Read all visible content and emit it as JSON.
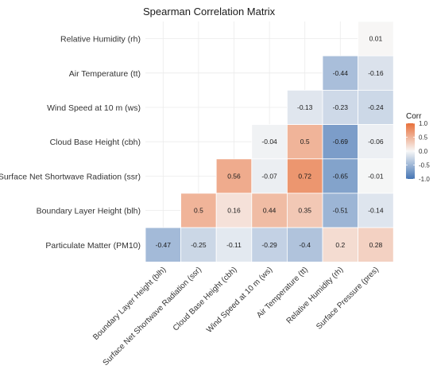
{
  "chart_data": {
    "type": "heatmap",
    "title": "Spearman Correlation Matrix",
    "row_labels": [
      "Relative Humidity (rh)",
      "Air Temperature (tt)",
      "Wind Speed at 10 m (ws)",
      "Cloud Base Height (cbh)",
      "Surface Net Shortwave Radiation (ssr)",
      "Boundary Layer Height (blh)",
      "Particulate Matter (PM10)"
    ],
    "col_labels": [
      "Boundary Layer Height (blh)",
      "Surface Net Shortwave Radiation (ssr)",
      "Cloud Base Height (cbh)",
      "Wind Speed at 10 m (ws)",
      "Air Temperature (tt)",
      "Relative Humidity (rh)",
      "Surface Pressure (pres)"
    ],
    "values": [
      [
        null,
        null,
        null,
        null,
        null,
        null,
        0.01
      ],
      [
        null,
        null,
        null,
        null,
        null,
        -0.44,
        -0.16
      ],
      [
        null,
        null,
        null,
        null,
        -0.13,
        -0.23,
        -0.24
      ],
      [
        null,
        null,
        null,
        -0.04,
        0.5,
        -0.69,
        -0.06
      ],
      [
        null,
        null,
        0.56,
        -0.07,
        0.72,
        -0.65,
        -0.01
      ],
      [
        null,
        0.5,
        0.16,
        0.44,
        0.35,
        -0.51,
        -0.14
      ],
      [
        -0.47,
        -0.25,
        -0.11,
        -0.29,
        -0.4,
        0.2,
        0.28
      ]
    ],
    "legend": {
      "title": "Corr",
      "ticks": [
        1.0,
        0.5,
        0.0,
        -0.5,
        -1.0
      ],
      "tick_labels": [
        "1.0",
        "0.5",
        "0.0",
        "-0.5",
        "-1.0"
      ],
      "placement": "right"
    },
    "value_range": [
      -1,
      1
    ],
    "colors": {
      "low": "#4575b4",
      "mid": "#f7f7f7",
      "high": "#e8703a"
    },
    "grid": true
  }
}
